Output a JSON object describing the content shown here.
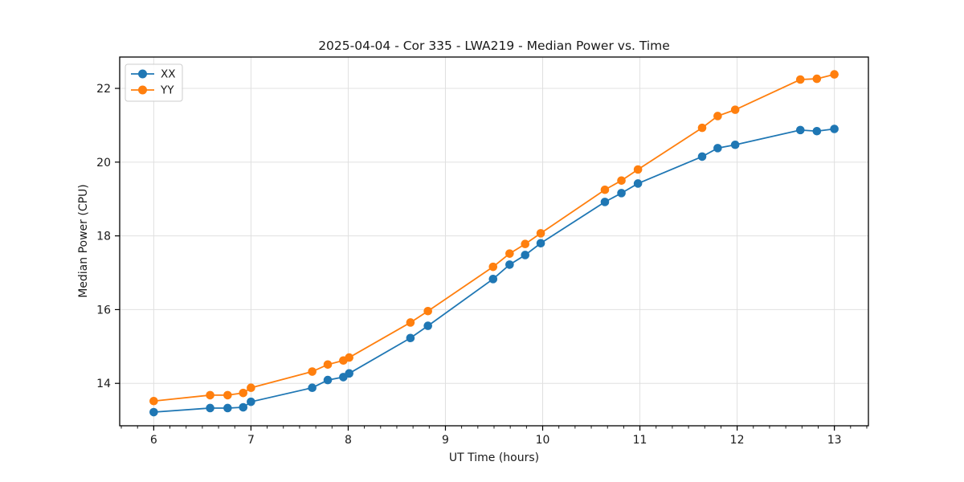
{
  "chart_data": {
    "type": "line",
    "title": "2025-04-04 - Cor 335 - LWA219 - Median Power vs. Time",
    "xlabel": "UT Time (hours)",
    "ylabel": "Median Power (CPU)",
    "xlim": [
      5.65,
      13.35
    ],
    "ylim": [
      12.85,
      22.85
    ],
    "x_ticks": [
      6,
      7,
      8,
      9,
      10,
      11,
      12,
      13
    ],
    "y_ticks": [
      14,
      16,
      18,
      20,
      22
    ],
    "x_minor_tick_interval_hours": 0.166667,
    "grid": true,
    "legend_position": "upper-left",
    "colors": {
      "series_xx": "#1f77b4",
      "series_yy": "#ff7f0e",
      "grid": "#e0e0e0",
      "spine": "#000000",
      "legend_border": "#cccccc"
    },
    "x": [
      6.0,
      6.58,
      6.76,
      6.92,
      7.0,
      7.63,
      7.79,
      7.95,
      8.01,
      8.64,
      8.82,
      9.49,
      9.66,
      9.82,
      9.98,
      10.64,
      10.81,
      10.98,
      11.64,
      11.8,
      11.98,
      12.65,
      12.82,
      13.0
    ],
    "series": [
      {
        "name": "XX",
        "color": "#1f77b4",
        "values": [
          13.22,
          13.33,
          13.33,
          13.35,
          13.5,
          13.88,
          14.09,
          14.17,
          14.27,
          15.23,
          15.56,
          16.83,
          17.22,
          17.48,
          17.8,
          18.92,
          19.16,
          19.42,
          20.15,
          20.38,
          20.47,
          20.87,
          20.84,
          20.9
        ]
      },
      {
        "name": "YY",
        "color": "#ff7f0e",
        "values": [
          13.52,
          13.68,
          13.68,
          13.74,
          13.88,
          14.32,
          14.51,
          14.62,
          14.7,
          15.65,
          15.96,
          17.16,
          17.52,
          17.78,
          18.07,
          19.25,
          19.5,
          19.8,
          20.93,
          21.25,
          21.42,
          22.24,
          22.26,
          22.38
        ]
      }
    ]
  }
}
